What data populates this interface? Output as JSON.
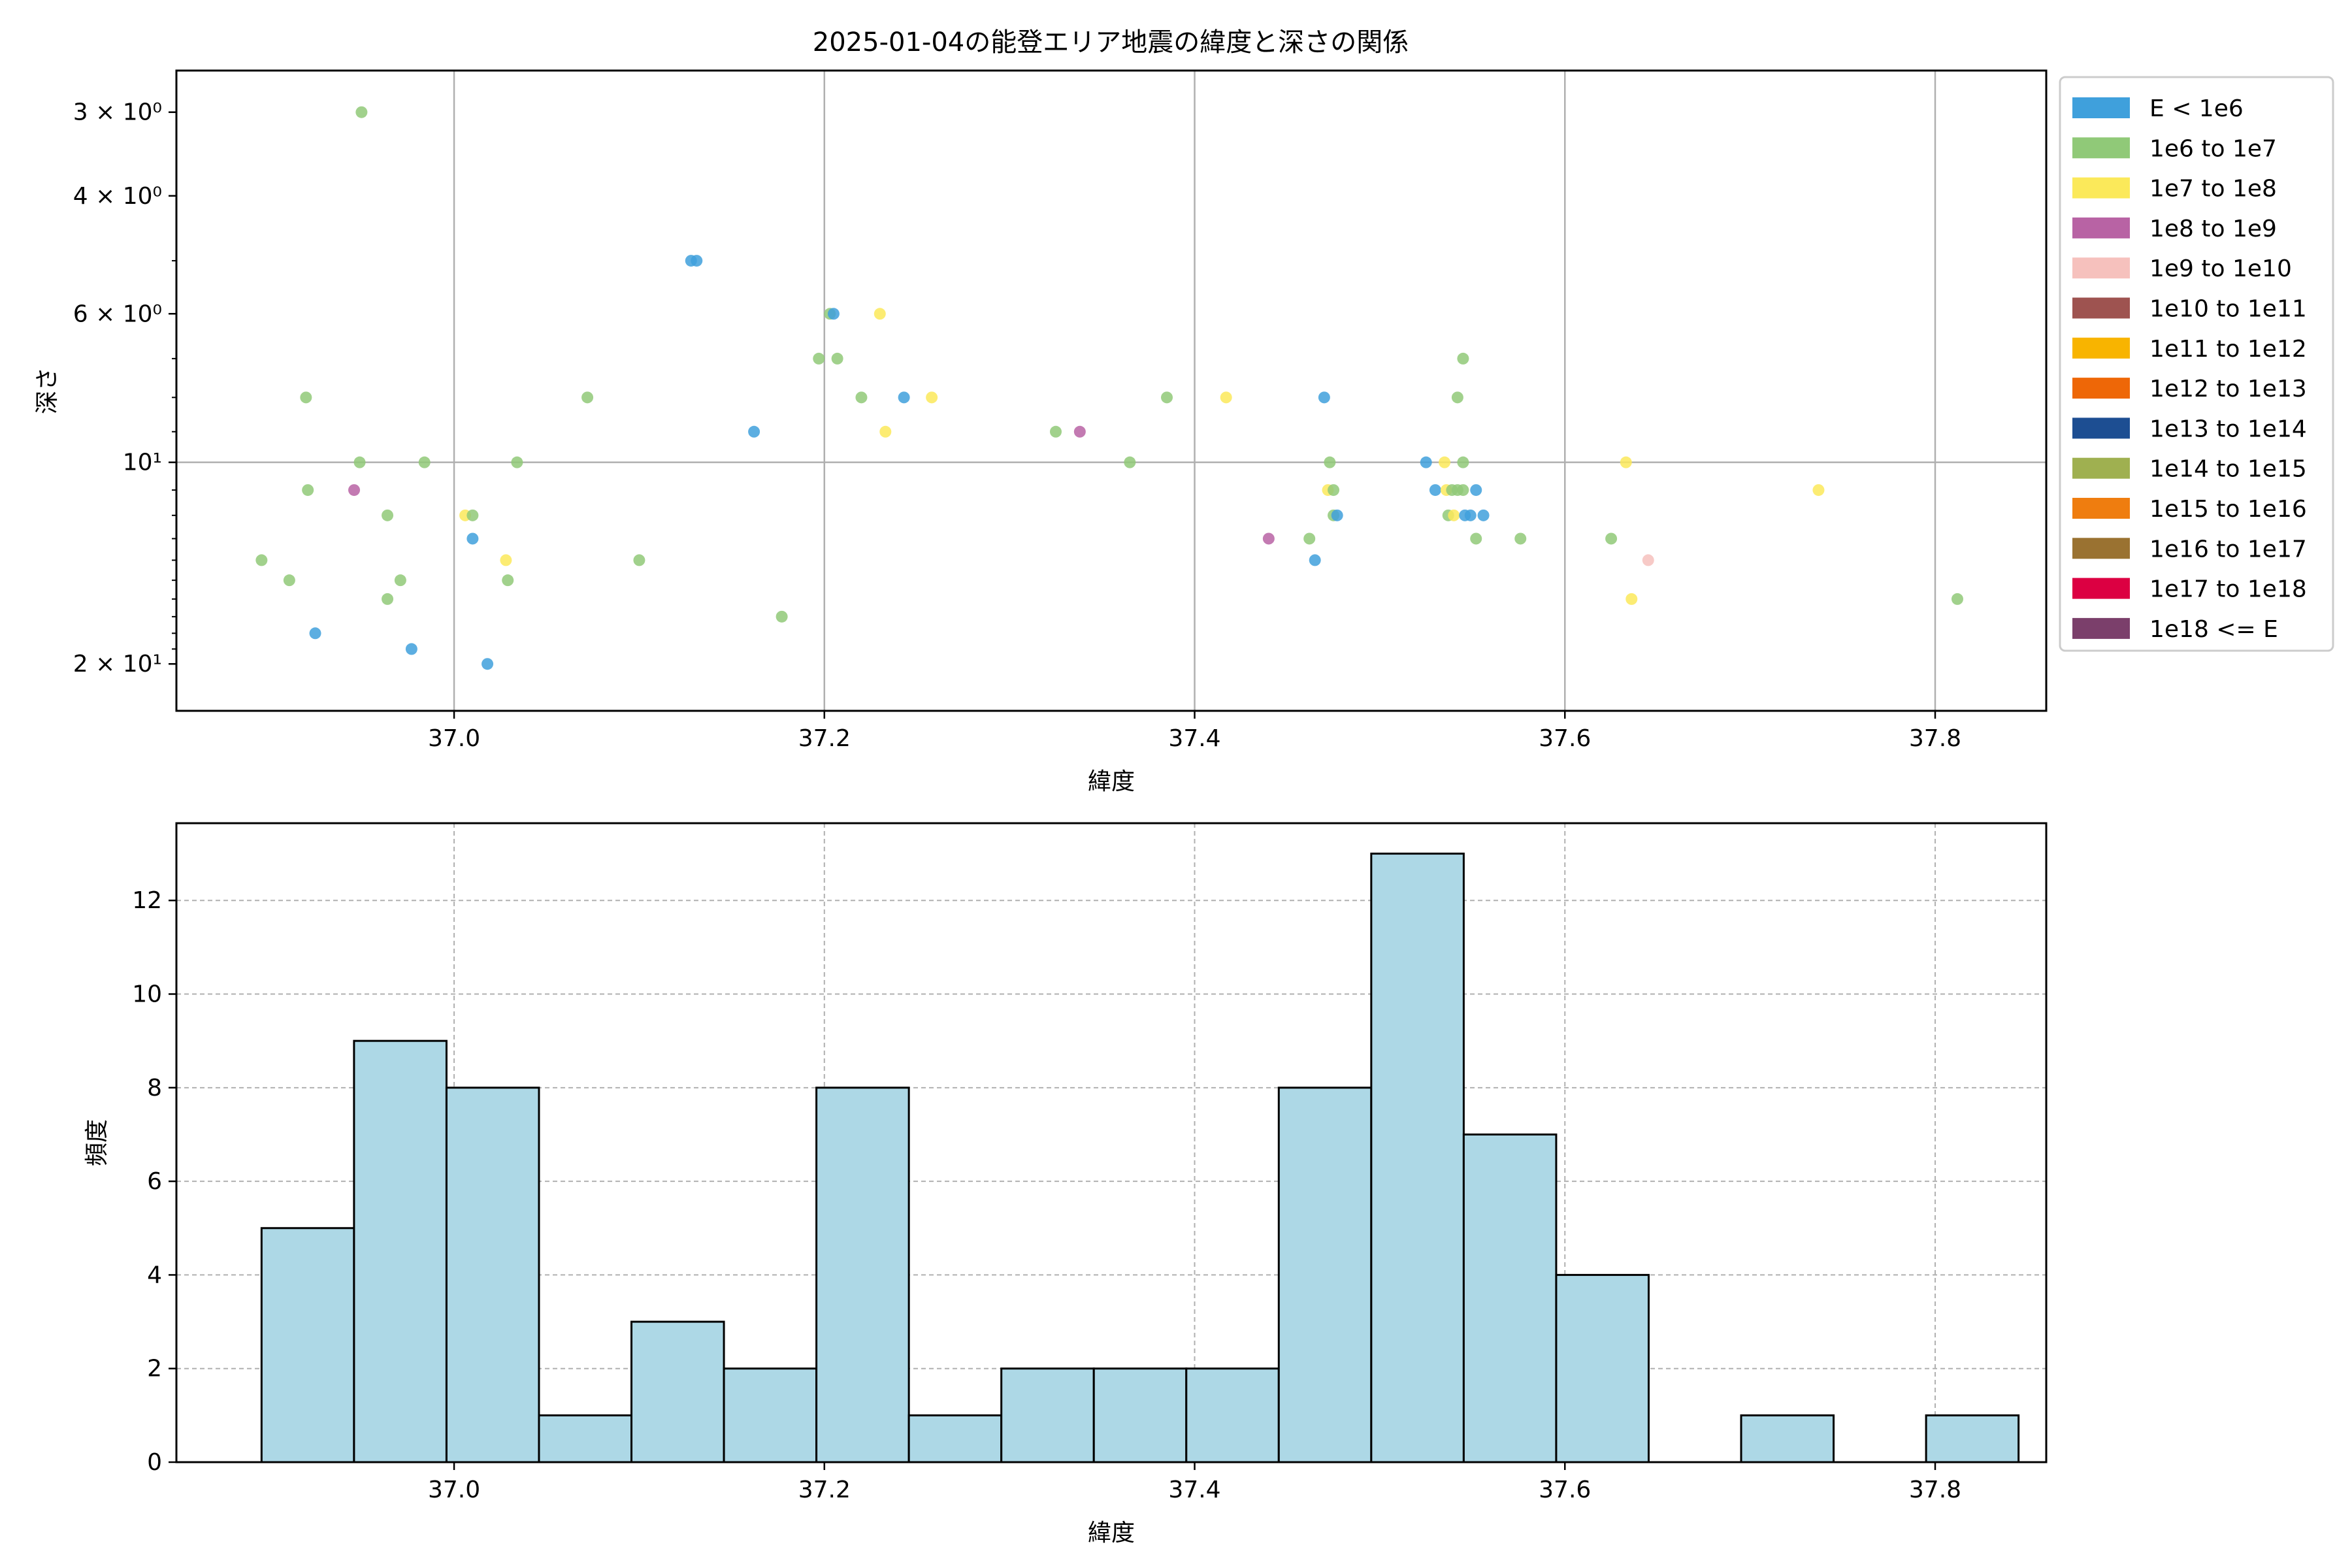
{
  "chart_data": [
    {
      "type": "scatter",
      "title": "2025-01-04の能登エリア地震の緯度と深さの関係",
      "xlabel": "緯度",
      "ylabel": "深さ",
      "x_range": [
        36.85,
        37.86
      ],
      "y_scale": "log",
      "y_inverted": true,
      "y_range": [
        2.6,
        23.5
      ],
      "x_ticks": [
        "37.0",
        "37.2",
        "37.4",
        "37.6",
        "37.8"
      ],
      "y_ticks": [
        {
          "value": 3,
          "label": "3 × 10⁰"
        },
        {
          "value": 4,
          "label": "4 × 10⁰"
        },
        {
          "value": 6,
          "label": "6 × 10⁰"
        },
        {
          "value": 10,
          "label": "10¹"
        },
        {
          "value": 20,
          "label": "2 × 10¹"
        }
      ],
      "grid": true,
      "legend_position": "outside-right",
      "legend": [
        {
          "label": "E < 1e6",
          "color": "#3fa0dc"
        },
        {
          "label": "1e6 to 1e7",
          "color": "#90c978"
        },
        {
          "label": "1e7 to 1e8",
          "color": "#fbe95a"
        },
        {
          "label": "1e8 to 1e9",
          "color": "#b863a4"
        },
        {
          "label": "1e9 to 1e10",
          "color": "#f6c1bd"
        },
        {
          "label": "1e10 to 1e11",
          "color": "#9e5350"
        },
        {
          "label": "1e11 to 1e12",
          "color": "#f8b400"
        },
        {
          "label": "1e12 to 1e13",
          "color": "#ee6707"
        },
        {
          "label": "1e13 to 1e14",
          "color": "#1d4e92"
        },
        {
          "label": "1e14 to 1e15",
          "color": "#9fb050"
        },
        {
          "label": "1e15 to 1e16",
          "color": "#ef7d0f"
        },
        {
          "label": "1e16 to 1e17",
          "color": "#9a7231"
        },
        {
          "label": "1e17 to 1e18",
          "color": "#dc0042"
        },
        {
          "label": "1e18 <= E",
          "color": "#7b3f6b"
        }
      ],
      "points": [
        {
          "x": 36.95,
          "y": 3.0,
          "c": 1
        },
        {
          "x": 37.128,
          "y": 5.0,
          "c": 0
        },
        {
          "x": 37.131,
          "y": 5.0,
          "c": 0
        },
        {
          "x": 37.203,
          "y": 6.0,
          "c": 1
        },
        {
          "x": 37.205,
          "y": 6.0,
          "c": 0
        },
        {
          "x": 37.23,
          "y": 6.0,
          "c": 2
        },
        {
          "x": 37.197,
          "y": 7.0,
          "c": 1
        },
        {
          "x": 37.207,
          "y": 7.0,
          "c": 1
        },
        {
          "x": 37.545,
          "y": 7.0,
          "c": 1
        },
        {
          "x": 36.92,
          "y": 8.0,
          "c": 1
        },
        {
          "x": 37.072,
          "y": 8.0,
          "c": 1
        },
        {
          "x": 37.22,
          "y": 8.0,
          "c": 1
        },
        {
          "x": 37.243,
          "y": 8.0,
          "c": 0
        },
        {
          "x": 37.258,
          "y": 8.0,
          "c": 2
        },
        {
          "x": 37.385,
          "y": 8.0,
          "c": 1
        },
        {
          "x": 37.417,
          "y": 8.0,
          "c": 2
        },
        {
          "x": 37.47,
          "y": 8.0,
          "c": 0
        },
        {
          "x": 37.542,
          "y": 8.0,
          "c": 1
        },
        {
          "x": 37.162,
          "y": 9.0,
          "c": 0
        },
        {
          "x": 37.233,
          "y": 9.0,
          "c": 2
        },
        {
          "x": 37.325,
          "y": 9.0,
          "c": 1
        },
        {
          "x": 37.338,
          "y": 9.0,
          "c": 3
        },
        {
          "x": 36.949,
          "y": 10.0,
          "c": 1
        },
        {
          "x": 36.984,
          "y": 10.0,
          "c": 1
        },
        {
          "x": 37.034,
          "y": 10.0,
          "c": 1
        },
        {
          "x": 37.365,
          "y": 10.0,
          "c": 1
        },
        {
          "x": 37.473,
          "y": 10.0,
          "c": 1
        },
        {
          "x": 37.525,
          "y": 10.0,
          "c": 0
        },
        {
          "x": 37.535,
          "y": 10.0,
          "c": 2
        },
        {
          "x": 37.545,
          "y": 10.0,
          "c": 1
        },
        {
          "x": 37.633,
          "y": 10.0,
          "c": 2
        },
        {
          "x": 36.921,
          "y": 11.0,
          "c": 1
        },
        {
          "x": 36.946,
          "y": 11.0,
          "c": 3
        },
        {
          "x": 37.472,
          "y": 11.0,
          "c": 2
        },
        {
          "x": 37.475,
          "y": 11.0,
          "c": 1
        },
        {
          "x": 37.53,
          "y": 11.0,
          "c": 0
        },
        {
          "x": 37.536,
          "y": 11.0,
          "c": 2
        },
        {
          "x": 37.539,
          "y": 11.0,
          "c": 1
        },
        {
          "x": 37.542,
          "y": 11.0,
          "c": 1
        },
        {
          "x": 37.545,
          "y": 11.0,
          "c": 1
        },
        {
          "x": 37.552,
          "y": 11.0,
          "c": 0
        },
        {
          "x": 37.737,
          "y": 11.0,
          "c": 2
        },
        {
          "x": 36.964,
          "y": 12.0,
          "c": 1
        },
        {
          "x": 37.006,
          "y": 12.0,
          "c": 2
        },
        {
          "x": 37.01,
          "y": 12.0,
          "c": 1
        },
        {
          "x": 37.475,
          "y": 12.0,
          "c": 1
        },
        {
          "x": 37.477,
          "y": 12.0,
          "c": 0
        },
        {
          "x": 37.537,
          "y": 12.0,
          "c": 1
        },
        {
          "x": 37.54,
          "y": 12.0,
          "c": 2
        },
        {
          "x": 37.546,
          "y": 12.0,
          "c": 0
        },
        {
          "x": 37.549,
          "y": 12.0,
          "c": 0
        },
        {
          "x": 37.556,
          "y": 12.0,
          "c": 0
        },
        {
          "x": 37.01,
          "y": 13.0,
          "c": 0
        },
        {
          "x": 37.44,
          "y": 13.0,
          "c": 3
        },
        {
          "x": 37.462,
          "y": 13.0,
          "c": 1
        },
        {
          "x": 37.552,
          "y": 13.0,
          "c": 1
        },
        {
          "x": 37.576,
          "y": 13.0,
          "c": 1
        },
        {
          "x": 37.625,
          "y": 13.0,
          "c": 1
        },
        {
          "x": 36.896,
          "y": 14.0,
          "c": 1
        },
        {
          "x": 37.028,
          "y": 14.0,
          "c": 2
        },
        {
          "x": 37.1,
          "y": 14.0,
          "c": 1
        },
        {
          "x": 37.465,
          "y": 14.0,
          "c": 0
        },
        {
          "x": 37.645,
          "y": 14.0,
          "c": 4
        },
        {
          "x": 36.911,
          "y": 15.0,
          "c": 1
        },
        {
          "x": 36.971,
          "y": 15.0,
          "c": 1
        },
        {
          "x": 37.029,
          "y": 15.0,
          "c": 1
        },
        {
          "x": 36.964,
          "y": 16.0,
          "c": 1
        },
        {
          "x": 37.636,
          "y": 16.0,
          "c": 2
        },
        {
          "x": 37.812,
          "y": 16.0,
          "c": 1
        },
        {
          "x": 37.177,
          "y": 17.0,
          "c": 1
        },
        {
          "x": 36.925,
          "y": 18.0,
          "c": 0
        },
        {
          "x": 36.977,
          "y": 19.0,
          "c": 0
        },
        {
          "x": 37.018,
          "y": 20.0,
          "c": 0
        }
      ]
    },
    {
      "type": "bar",
      "subtype": "histogram",
      "xlabel": "緯度",
      "ylabel": "頻度",
      "x_range": [
        36.85,
        37.86
      ],
      "ylim": [
        0,
        13.65
      ],
      "x_ticks": [
        "37.0",
        "37.2",
        "37.4",
        "37.6",
        "37.8"
      ],
      "y_ticks": [
        "0",
        "2",
        "4",
        "6",
        "8",
        "10",
        "12"
      ],
      "grid": true,
      "bar_color": "#add8e6",
      "bin_start": 36.896,
      "bin_width": 0.04995,
      "values": [
        5,
        9,
        8,
        1,
        3,
        2,
        8,
        1,
        2,
        2,
        2,
        8,
        13,
        7,
        4,
        0,
        1,
        0,
        1
      ]
    }
  ]
}
